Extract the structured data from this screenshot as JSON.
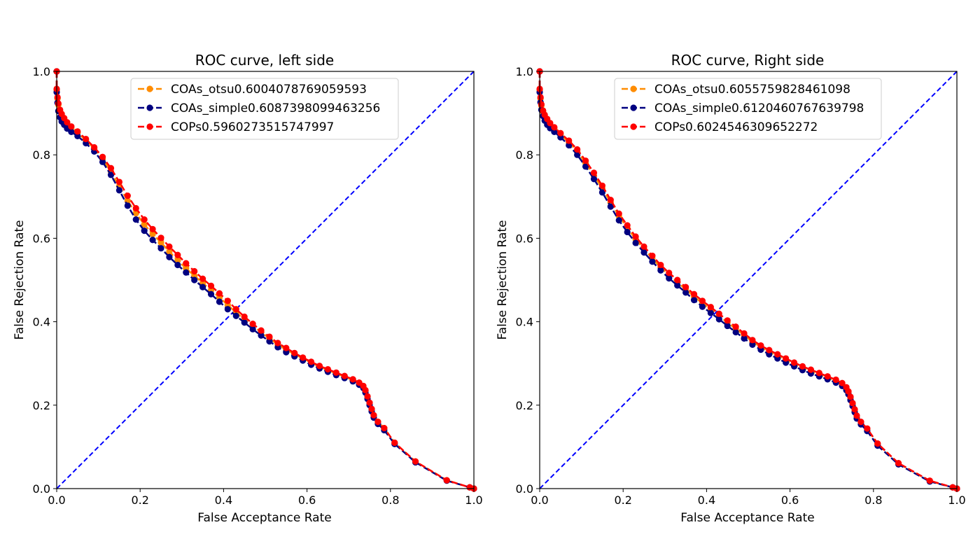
{
  "chart_data": [
    {
      "type": "line",
      "title": "ROC curve, left side",
      "xlabel": "False Acceptance Rate",
      "ylabel": "False Rejection Rate",
      "xlim": [
        0,
        1
      ],
      "ylim": [
        0,
        1
      ],
      "xticks": [
        "0.0",
        "0.2",
        "0.4",
        "0.6",
        "0.8",
        "1.0"
      ],
      "yticks": [
        "0.0",
        "0.2",
        "0.4",
        "0.6",
        "0.8",
        "1.0"
      ],
      "legend_position": "top-center",
      "diagonal": {
        "x": [
          0,
          1
        ],
        "y": [
          0,
          1
        ],
        "color": "#0000ff",
        "style": "dashed"
      },
      "series": [
        {
          "name": "COAs_otsu0.6004078769059593",
          "color": "#ff8c00",
          "x": [
            0.0,
            0.0,
            0.002,
            0.004,
            0.008,
            0.012,
            0.018,
            0.025,
            0.035,
            0.05,
            0.07,
            0.09,
            0.11,
            0.13,
            0.15,
            0.17,
            0.19,
            0.21,
            0.23,
            0.25,
            0.27,
            0.29,
            0.31,
            0.33,
            0.35,
            0.37,
            0.39,
            0.41,
            0.43,
            0.45,
            0.47,
            0.49,
            0.51,
            0.53,
            0.55,
            0.57,
            0.59,
            0.61,
            0.63,
            0.65,
            0.67,
            0.69,
            0.71,
            0.725,
            0.735,
            0.74,
            0.745,
            0.75,
            0.755,
            0.76,
            0.77,
            0.785,
            0.81,
            0.86,
            0.935,
            0.99,
            1.0
          ],
          "y": [
            1.0,
            0.955,
            0.935,
            0.92,
            0.905,
            0.895,
            0.885,
            0.875,
            0.865,
            0.853,
            0.835,
            0.815,
            0.79,
            0.76,
            0.725,
            0.69,
            0.66,
            0.633,
            0.61,
            0.59,
            0.568,
            0.547,
            0.528,
            0.51,
            0.493,
            0.476,
            0.458,
            0.44,
            0.422,
            0.406,
            0.39,
            0.375,
            0.36,
            0.345,
            0.333,
            0.322,
            0.312,
            0.302,
            0.292,
            0.284,
            0.276,
            0.268,
            0.26,
            0.252,
            0.245,
            0.235,
            0.22,
            0.205,
            0.19,
            0.175,
            0.16,
            0.145,
            0.11,
            0.065,
            0.02,
            0.003,
            0.0
          ]
        },
        {
          "name": "COAs_simple0.6087398099463256",
          "color": "#000080",
          "x": [
            0.0,
            0.0,
            0.002,
            0.004,
            0.008,
            0.012,
            0.018,
            0.025,
            0.035,
            0.05,
            0.07,
            0.09,
            0.11,
            0.13,
            0.15,
            0.17,
            0.19,
            0.21,
            0.23,
            0.25,
            0.27,
            0.29,
            0.31,
            0.33,
            0.35,
            0.37,
            0.39,
            0.41,
            0.43,
            0.45,
            0.47,
            0.49,
            0.51,
            0.53,
            0.55,
            0.57,
            0.59,
            0.61,
            0.63,
            0.65,
            0.67,
            0.69,
            0.71,
            0.725,
            0.735,
            0.74,
            0.745,
            0.75,
            0.755,
            0.76,
            0.77,
            0.785,
            0.81,
            0.86,
            0.935,
            0.99,
            1.0
          ],
          "y": [
            1.0,
            0.95,
            0.925,
            0.905,
            0.89,
            0.88,
            0.872,
            0.863,
            0.855,
            0.845,
            0.828,
            0.808,
            0.783,
            0.752,
            0.715,
            0.678,
            0.645,
            0.618,
            0.596,
            0.576,
            0.555,
            0.536,
            0.518,
            0.5,
            0.483,
            0.466,
            0.448,
            0.43,
            0.414,
            0.398,
            0.382,
            0.367,
            0.353,
            0.339,
            0.327,
            0.317,
            0.307,
            0.297,
            0.288,
            0.28,
            0.272,
            0.265,
            0.257,
            0.249,
            0.241,
            0.23,
            0.215,
            0.2,
            0.185,
            0.17,
            0.155,
            0.14,
            0.107,
            0.063,
            0.019,
            0.003,
            0.0
          ]
        },
        {
          "name": "COPs0.5960273515747997",
          "color": "#ff0000",
          "x": [
            0.0,
            0.0,
            0.002,
            0.004,
            0.008,
            0.012,
            0.018,
            0.025,
            0.035,
            0.05,
            0.07,
            0.09,
            0.11,
            0.13,
            0.15,
            0.17,
            0.19,
            0.21,
            0.23,
            0.25,
            0.27,
            0.29,
            0.31,
            0.33,
            0.35,
            0.37,
            0.39,
            0.41,
            0.43,
            0.45,
            0.47,
            0.49,
            0.51,
            0.53,
            0.55,
            0.57,
            0.59,
            0.61,
            0.63,
            0.65,
            0.67,
            0.69,
            0.71,
            0.725,
            0.735,
            0.74,
            0.745,
            0.75,
            0.755,
            0.76,
            0.77,
            0.785,
            0.81,
            0.86,
            0.935,
            0.99,
            1.0
          ],
          "y": [
            1.0,
            0.958,
            0.938,
            0.923,
            0.908,
            0.898,
            0.888,
            0.878,
            0.868,
            0.856,
            0.838,
            0.818,
            0.795,
            0.768,
            0.735,
            0.702,
            0.672,
            0.645,
            0.622,
            0.601,
            0.58,
            0.56,
            0.54,
            0.521,
            0.503,
            0.486,
            0.468,
            0.45,
            0.43,
            0.412,
            0.395,
            0.379,
            0.364,
            0.349,
            0.337,
            0.325,
            0.314,
            0.304,
            0.294,
            0.286,
            0.278,
            0.27,
            0.262,
            0.254,
            0.246,
            0.236,
            0.221,
            0.206,
            0.191,
            0.176,
            0.16,
            0.145,
            0.11,
            0.065,
            0.02,
            0.003,
            0.0
          ]
        }
      ]
    },
    {
      "type": "line",
      "title": "ROC curve, Right side",
      "xlabel": "False Acceptance Rate",
      "ylabel": "False Rejection Rate",
      "xlim": [
        0,
        1
      ],
      "ylim": [
        0,
        1
      ],
      "xticks": [
        "0.0",
        "0.2",
        "0.4",
        "0.6",
        "0.8",
        "1.0"
      ],
      "yticks": [
        "0.0",
        "0.2",
        "0.4",
        "0.6",
        "0.8",
        "1.0"
      ],
      "legend_position": "top-center",
      "diagonal": {
        "x": [
          0,
          1
        ],
        "y": [
          0,
          1
        ],
        "color": "#0000ff",
        "style": "dashed"
      },
      "series": [
        {
          "name": "COAs_otsu0.6055759828461098",
          "color": "#ff8c00",
          "x": [
            0.0,
            0.0,
            0.002,
            0.004,
            0.008,
            0.012,
            0.018,
            0.025,
            0.035,
            0.05,
            0.07,
            0.09,
            0.11,
            0.13,
            0.15,
            0.17,
            0.19,
            0.21,
            0.23,
            0.25,
            0.27,
            0.29,
            0.31,
            0.33,
            0.35,
            0.37,
            0.39,
            0.41,
            0.43,
            0.45,
            0.47,
            0.49,
            0.51,
            0.53,
            0.55,
            0.57,
            0.59,
            0.61,
            0.63,
            0.65,
            0.67,
            0.69,
            0.71,
            0.725,
            0.735,
            0.74,
            0.745,
            0.75,
            0.755,
            0.76,
            0.77,
            0.785,
            0.81,
            0.86,
            0.935,
            0.99,
            1.0
          ],
          "y": [
            1.0,
            0.955,
            0.935,
            0.918,
            0.903,
            0.893,
            0.882,
            0.872,
            0.862,
            0.848,
            0.83,
            0.808,
            0.78,
            0.75,
            0.72,
            0.686,
            0.653,
            0.625,
            0.598,
            0.574,
            0.552,
            0.53,
            0.511,
            0.494,
            0.478,
            0.46,
            0.444,
            0.43,
            0.414,
            0.398,
            0.383,
            0.368,
            0.352,
            0.339,
            0.328,
            0.318,
            0.308,
            0.298,
            0.289,
            0.281,
            0.273,
            0.266,
            0.258,
            0.25,
            0.24,
            0.23,
            0.217,
            0.202,
            0.187,
            0.172,
            0.158,
            0.142,
            0.107,
            0.06,
            0.018,
            0.003,
            0.0
          ]
        },
        {
          "name": "COAs_simple0.6120460767639798",
          "color": "#000080",
          "x": [
            0.0,
            0.0,
            0.002,
            0.004,
            0.008,
            0.012,
            0.018,
            0.025,
            0.035,
            0.05,
            0.07,
            0.09,
            0.11,
            0.13,
            0.15,
            0.17,
            0.19,
            0.21,
            0.23,
            0.25,
            0.27,
            0.29,
            0.31,
            0.33,
            0.35,
            0.37,
            0.39,
            0.41,
            0.43,
            0.45,
            0.47,
            0.49,
            0.51,
            0.53,
            0.55,
            0.57,
            0.59,
            0.61,
            0.63,
            0.65,
            0.67,
            0.69,
            0.71,
            0.725,
            0.735,
            0.74,
            0.745,
            0.75,
            0.755,
            0.76,
            0.77,
            0.785,
            0.81,
            0.86,
            0.935,
            0.99,
            1.0
          ],
          "y": [
            1.0,
            0.95,
            0.926,
            0.908,
            0.893,
            0.882,
            0.872,
            0.864,
            0.855,
            0.842,
            0.823,
            0.8,
            0.772,
            0.742,
            0.71,
            0.676,
            0.643,
            0.615,
            0.589,
            0.566,
            0.544,
            0.523,
            0.504,
            0.487,
            0.47,
            0.452,
            0.436,
            0.421,
            0.406,
            0.39,
            0.375,
            0.36,
            0.345,
            0.333,
            0.322,
            0.312,
            0.302,
            0.293,
            0.284,
            0.276,
            0.269,
            0.262,
            0.254,
            0.246,
            0.236,
            0.226,
            0.212,
            0.198,
            0.183,
            0.168,
            0.154,
            0.138,
            0.103,
            0.058,
            0.017,
            0.003,
            0.0
          ]
        },
        {
          "name": "COPs0.6024546309652272",
          "color": "#ff0000",
          "x": [
            0.0,
            0.0,
            0.002,
            0.004,
            0.008,
            0.012,
            0.018,
            0.025,
            0.035,
            0.05,
            0.07,
            0.09,
            0.11,
            0.13,
            0.15,
            0.17,
            0.19,
            0.21,
            0.23,
            0.25,
            0.27,
            0.29,
            0.31,
            0.33,
            0.35,
            0.37,
            0.39,
            0.41,
            0.43,
            0.45,
            0.47,
            0.49,
            0.51,
            0.53,
            0.55,
            0.57,
            0.59,
            0.61,
            0.63,
            0.65,
            0.67,
            0.69,
            0.71,
            0.725,
            0.735,
            0.74,
            0.745,
            0.75,
            0.755,
            0.76,
            0.77,
            0.785,
            0.81,
            0.86,
            0.935,
            0.99,
            1.0
          ],
          "y": [
            1.0,
            0.958,
            0.938,
            0.921,
            0.906,
            0.896,
            0.886,
            0.876,
            0.866,
            0.852,
            0.834,
            0.813,
            0.786,
            0.757,
            0.726,
            0.692,
            0.659,
            0.631,
            0.604,
            0.58,
            0.558,
            0.536,
            0.517,
            0.5,
            0.483,
            0.466,
            0.45,
            0.435,
            0.419,
            0.403,
            0.388,
            0.372,
            0.356,
            0.343,
            0.332,
            0.322,
            0.312,
            0.302,
            0.293,
            0.285,
            0.277,
            0.269,
            0.261,
            0.253,
            0.243,
            0.233,
            0.22,
            0.205,
            0.19,
            0.175,
            0.16,
            0.144,
            0.108,
            0.061,
            0.019,
            0.003,
            0.0
          ]
        }
      ]
    }
  ]
}
